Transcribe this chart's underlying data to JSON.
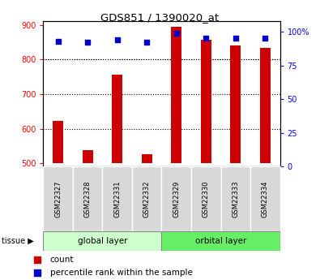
{
  "title": "GDS851 / 1390020_at",
  "samples": [
    "GSM22327",
    "GSM22328",
    "GSM22331",
    "GSM22332",
    "GSM22329",
    "GSM22330",
    "GSM22333",
    "GSM22334"
  ],
  "counts": [
    623,
    537,
    757,
    527,
    895,
    858,
    840,
    833
  ],
  "percentile_ranks": [
    93,
    92,
    94,
    92,
    99,
    95,
    95,
    95
  ],
  "group1": {
    "label": "global layer",
    "indices": [
      0,
      1,
      2,
      3
    ]
  },
  "group2": {
    "label": "orbital layer",
    "indices": [
      4,
      5,
      6,
      7
    ]
  },
  "tissue_label": "tissue",
  "bar_color": "#cc0000",
  "dot_color": "#0000cc",
  "ylim_left": [
    490,
    912
  ],
  "ylim_right": [
    0,
    108
  ],
  "yticks_left": [
    500,
    600,
    700,
    800,
    900
  ],
  "yticks_right": [
    0,
    25,
    50,
    75,
    100
  ],
  "ytick_labels_right": [
    "0",
    "25",
    "50",
    "75",
    "100%"
  ],
  "bar_bottom": 500,
  "group1_color": "#ccffcc",
  "group2_color": "#66ee66",
  "legend_count_label": "count",
  "legend_pct_label": "percentile rank within the sample"
}
